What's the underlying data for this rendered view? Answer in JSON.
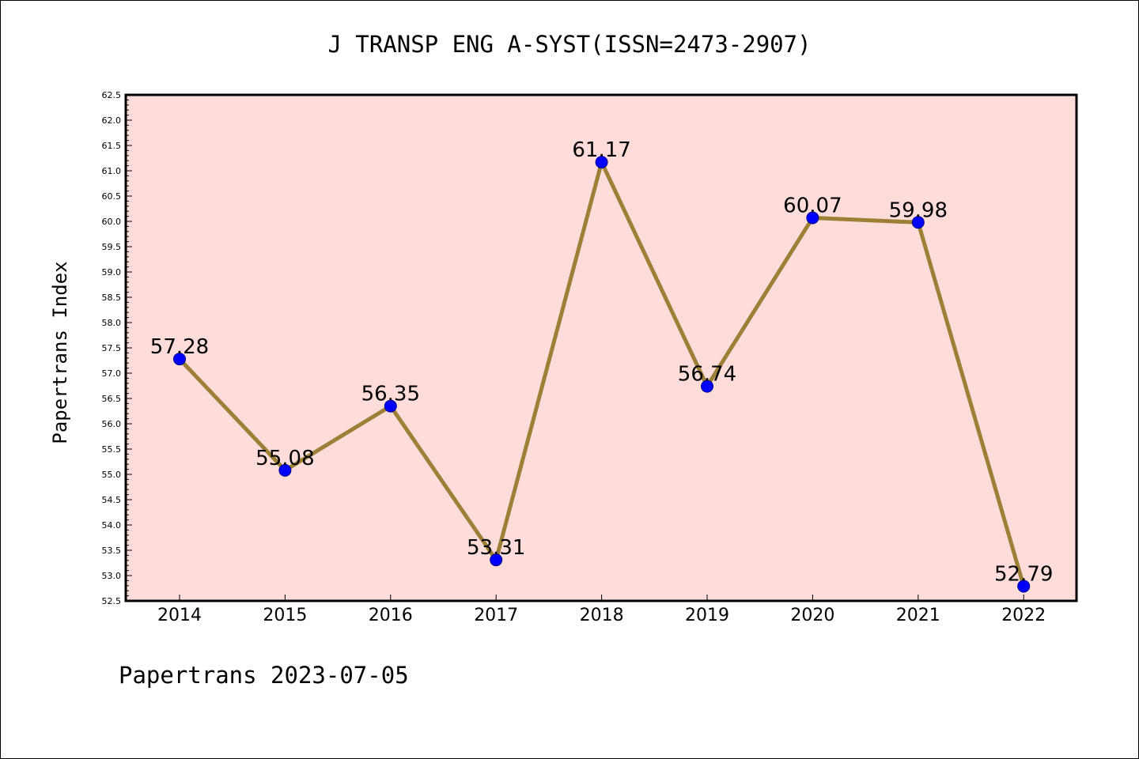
{
  "title": "J TRANSP ENG A-SYST(ISSN=2473-2907)",
  "footer": "Papertrans 2023-07-05",
  "colors": {
    "plot_background": "#fddcda",
    "line": "#9b8036",
    "marker": "#0000ff",
    "frame": "#000000"
  },
  "chart_data": {
    "type": "line",
    "title": "J TRANSP ENG A-SYST(ISSN=2473-2907)",
    "xlabel": "",
    "ylabel": "Papertrans Index",
    "categories": [
      "2014",
      "2015",
      "2016",
      "2017",
      "2018",
      "2019",
      "2020",
      "2021",
      "2022"
    ],
    "values": [
      57.28,
      55.08,
      56.35,
      53.31,
      61.17,
      56.74,
      60.07,
      59.98,
      52.79
    ],
    "data_labels": [
      "57.28",
      "55.08",
      "56.35",
      "53.31",
      "61.17",
      "56.74",
      "60.07",
      "59.98",
      "52.79"
    ],
    "ylim": [
      52.5,
      62.5
    ],
    "yticks": [
      "52.5",
      "53.0",
      "53.5",
      "54.0",
      "54.5",
      "55.0",
      "55.5",
      "56.0",
      "56.5",
      "57.0",
      "57.5",
      "58.0",
      "58.5",
      "59.0",
      "59.5",
      "60.0",
      "60.5",
      "61.0",
      "61.5",
      "62.0",
      "62.5"
    ],
    "grid": false,
    "legend": "none"
  }
}
